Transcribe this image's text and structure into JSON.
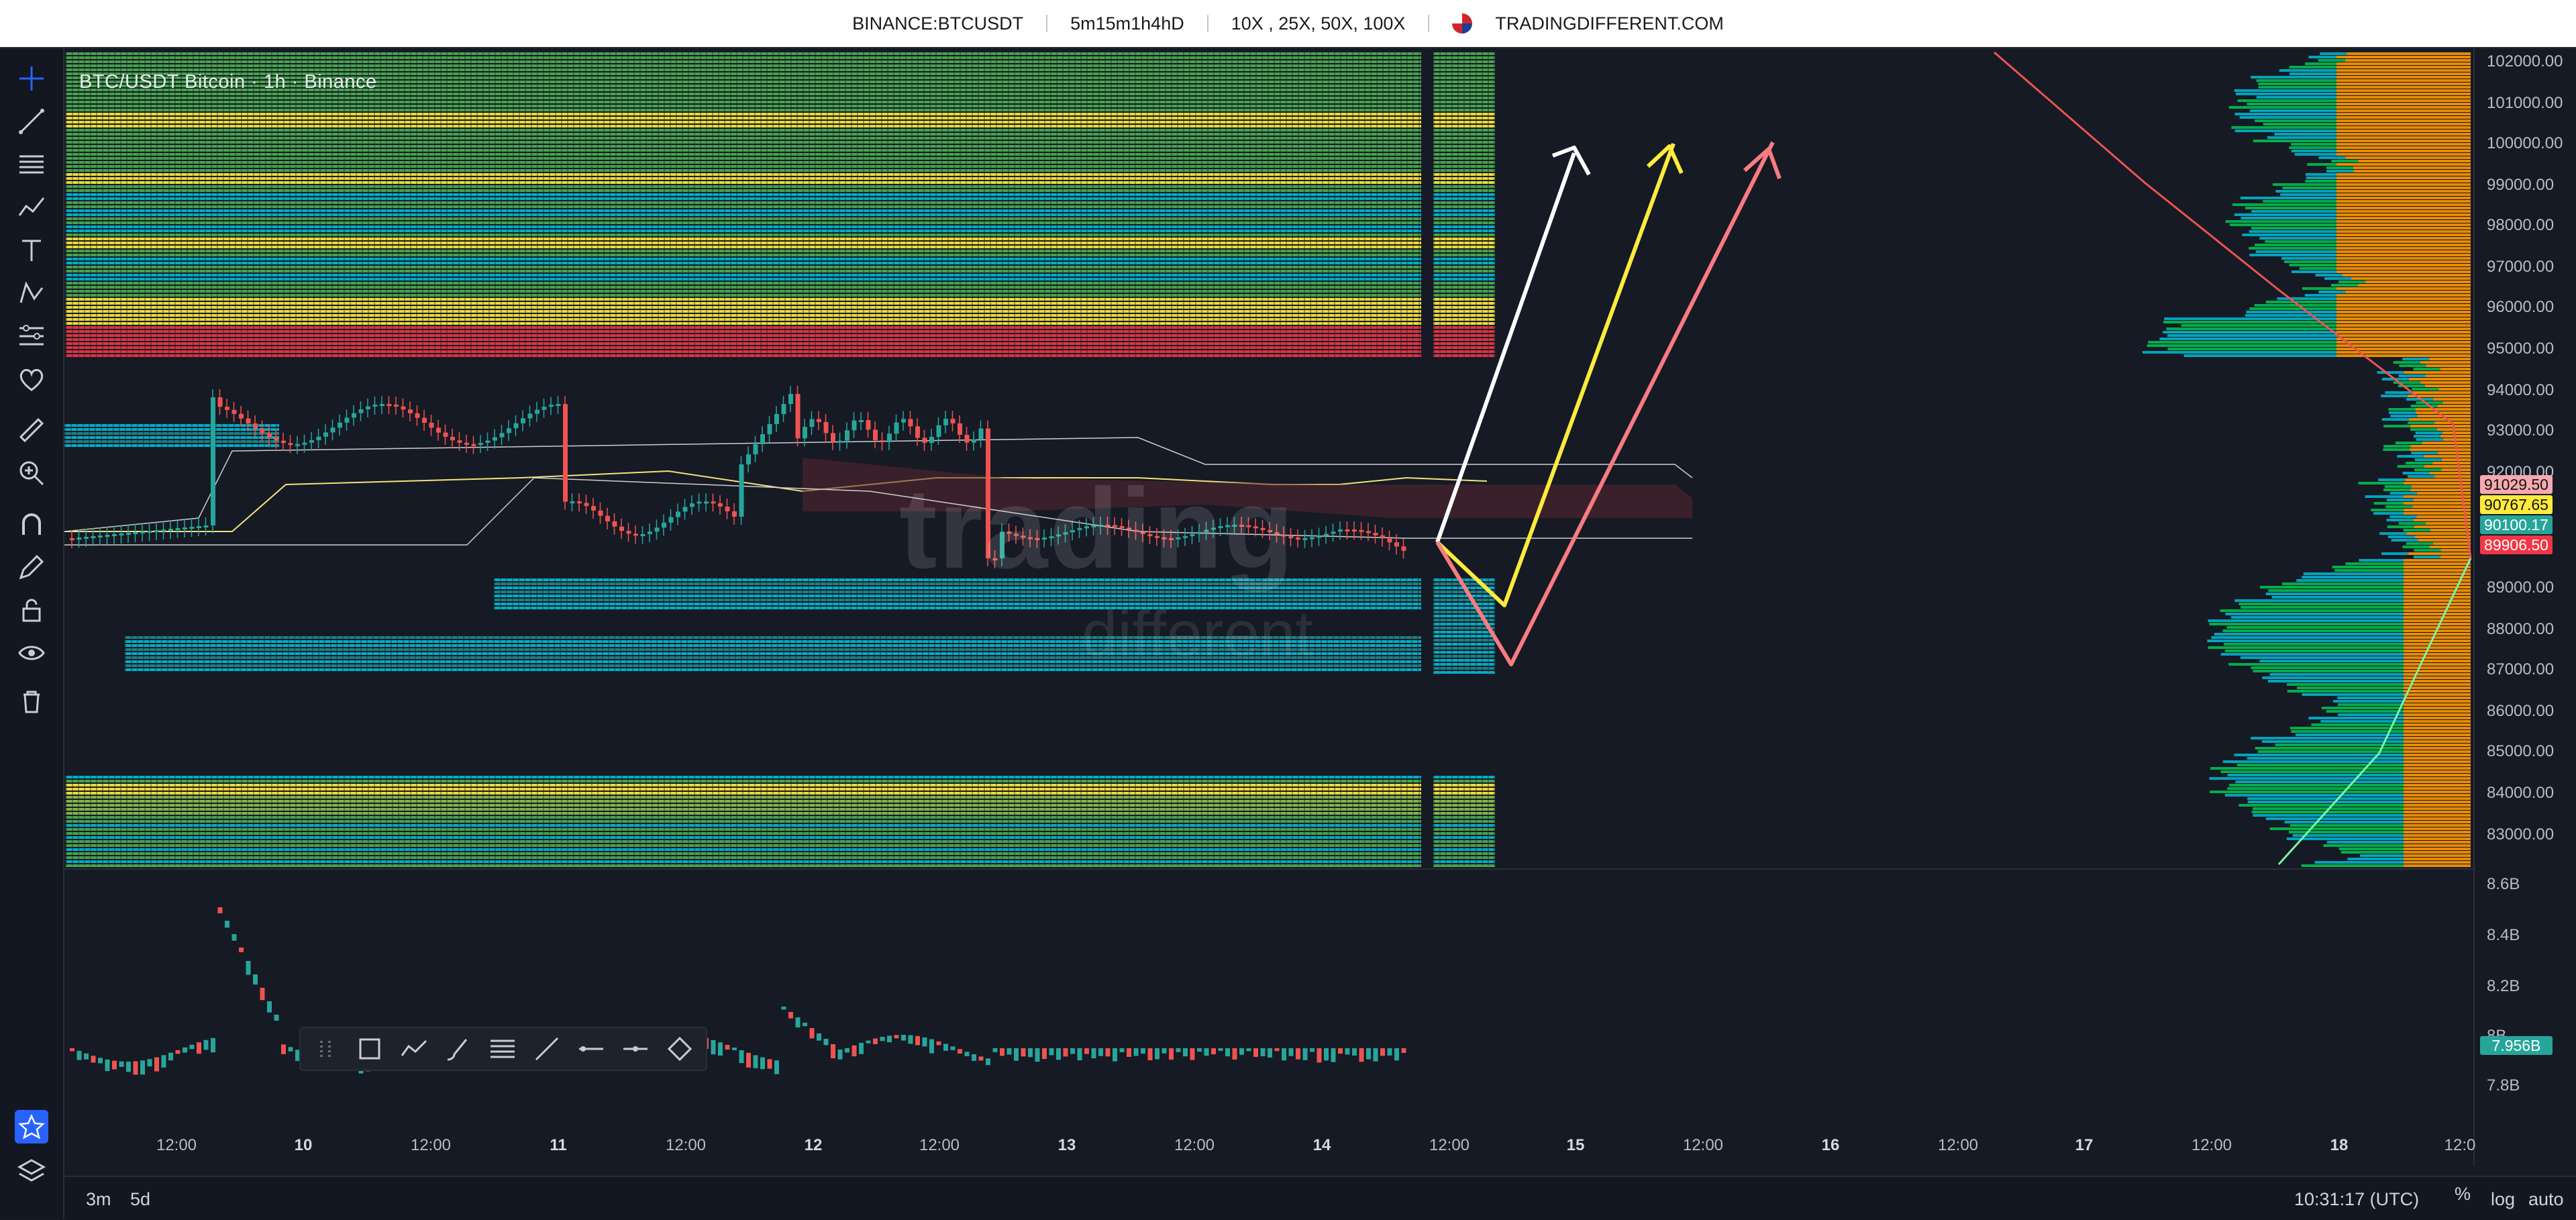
{
  "header": {
    "symbol": "BINANCE:BTCUSDT",
    "timeframes": "5m15m1h4hD",
    "leverages": "10X , 25X, 50X, 100X",
    "brand": "TRADINGDIFFERENT.COM"
  },
  "chart": {
    "title": "BTC/USDT Bitcoin · 1h · Binance",
    "watermark_top": "trading",
    "watermark_bottom": "different",
    "colors": {
      "background": "#161a25",
      "up_candle": "#26a69a",
      "down_candle": "#ef5350",
      "arrow_white": "#ffffff",
      "arrow_yellow": "#ffeb3b",
      "arrow_pink": "#f77c80",
      "heat_low": "#00bcd4",
      "heat_mid": "#4caf50",
      "heat_high": "#ffeb3b",
      "heat_max": "#f23645",
      "volume_profile": "#ff9800"
    }
  },
  "price_axis": {
    "labels": [
      "102000.00",
      "101000.00",
      "100000.00",
      "99000.00",
      "98000.00",
      "97000.00",
      "96000.00",
      "95000.00",
      "94000.00",
      "93000.00",
      "92000.00",
      "89000.00",
      "88000.00",
      "87000.00",
      "86000.00",
      "85000.00",
      "84000.00",
      "83000.00"
    ],
    "tags": [
      {
        "value": "91029.50",
        "color": "#f7a8b0"
      },
      {
        "value": "90767.65",
        "color": "#ffeb3b"
      },
      {
        "value": "90100.17",
        "color": "#26a69a"
      },
      {
        "value": "89906.50",
        "color": "#f23645"
      }
    ],
    "volume_labels": [
      "8.6B",
      "8.4B",
      "8.2B",
      "8B",
      "7.8B"
    ],
    "volume_tag": "7.956B"
  },
  "time_axis": {
    "labels": [
      {
        "text": "12:00",
        "day": false
      },
      {
        "text": "10",
        "day": true
      },
      {
        "text": "12:00",
        "day": false
      },
      {
        "text": "11",
        "day": true
      },
      {
        "text": "12:00",
        "day": false
      },
      {
        "text": "12",
        "day": true
      },
      {
        "text": "12:00",
        "day": false
      },
      {
        "text": "13",
        "day": true
      },
      {
        "text": "12:00",
        "day": false
      },
      {
        "text": "14",
        "day": true
      },
      {
        "text": "12:00",
        "day": false
      },
      {
        "text": "15",
        "day": true
      },
      {
        "text": "12:00",
        "day": false
      },
      {
        "text": "16",
        "day": true
      },
      {
        "text": "12:00",
        "day": false
      },
      {
        "text": "17",
        "day": true
      },
      {
        "text": "12:00",
        "day": false
      },
      {
        "text": "18",
        "day": true
      },
      {
        "text": "12:0",
        "day": false
      }
    ]
  },
  "bottom_bar": {
    "range_3m": "3m",
    "range_5d": "5d",
    "clock": "10:31:17 (UTC)",
    "percent": "%",
    "log": "log",
    "auto": "auto"
  },
  "toolbar_icons": [
    "crosshair-icon",
    "trend-line-icon",
    "fib-icon",
    "pattern-icon",
    "text-icon",
    "prediction-icon",
    "ruler-group-icon",
    "heart-icon",
    "measure-icon",
    "zoom-icon",
    "magnet-icon",
    "pencil-lock-icon",
    "lock-icon",
    "eye-icon",
    "trash-icon",
    "star-icon",
    "layers-icon"
  ],
  "drawing_toolbar": [
    "drag-handle-icon",
    "rectangle-icon",
    "path-icon",
    "brush-icon",
    "fib-lines-icon",
    "trendline-icon",
    "horizontal-ray-icon",
    "horizontal-line-icon",
    "circle-icon"
  ]
}
